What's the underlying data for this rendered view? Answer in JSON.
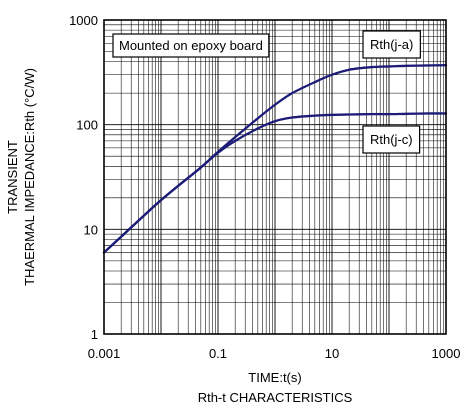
{
  "chart_data": {
    "type": "line",
    "title": "Rth-t CHARACTERISTICS",
    "xlabel": "TIME:t(s)",
    "ylabel_lines": [
      "TRANSIENT",
      "THAERMAL IMPEDANCE:Rth  (°C/W)"
    ],
    "xscale": "log",
    "yscale": "log",
    "xlim": [
      0.001,
      1000
    ],
    "ylim": [
      1,
      1000
    ],
    "grid": true,
    "x_tick_labels": [
      "0.001",
      "0.1",
      "10",
      "1000"
    ],
    "y_tick_labels": [
      "1",
      "10",
      "100",
      "1000"
    ],
    "annotation": "Mounted on epoxy board",
    "series": [
      {
        "name": "Rth(j-a)",
        "x": [
          0.001,
          0.002,
          0.005,
          0.01,
          0.02,
          0.05,
          0.1,
          0.2,
          0.5,
          1,
          2,
          5,
          10,
          20,
          50,
          100,
          200,
          500,
          1000
        ],
        "y": [
          6,
          8.5,
          13.5,
          19,
          26,
          39,
          55,
          76,
          115,
          155,
          200,
          255,
          300,
          335,
          355,
          360,
          365,
          368,
          370
        ]
      },
      {
        "name": "Rth(j-c)",
        "x": [
          0.001,
          0.002,
          0.005,
          0.01,
          0.02,
          0.05,
          0.1,
          0.2,
          0.5,
          1,
          2,
          5,
          10,
          20,
          50,
          100,
          200,
          500,
          1000
        ],
        "y": [
          6,
          8.5,
          13.5,
          19,
          26,
          39,
          54,
          70,
          92,
          108,
          117,
          122,
          124,
          125,
          126,
          126,
          127,
          128,
          128
        ]
      }
    ]
  }
}
